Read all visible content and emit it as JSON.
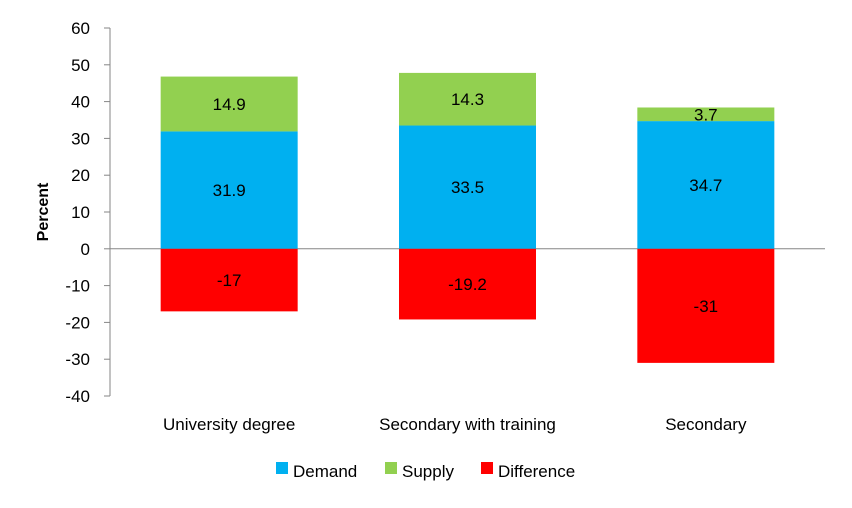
{
  "chart_data": {
    "type": "bar",
    "stacked": true,
    "categories": [
      "University degree",
      "Secondary with training",
      "Secondary"
    ],
    "series": [
      {
        "name": "Demand",
        "color": "#00B0F0",
        "values": [
          31.9,
          33.5,
          34.7
        ],
        "labels": [
          "31.9",
          "33.5",
          "34.7"
        ]
      },
      {
        "name": "Supply",
        "color": "#92D050",
        "values": [
          14.9,
          14.3,
          3.7
        ],
        "labels": [
          "14.9",
          "14.3",
          "3.7"
        ]
      },
      {
        "name": "Difference",
        "color": "#FF0000",
        "values": [
          -17,
          -19.2,
          -31
        ],
        "labels": [
          "-17",
          "-19.2",
          "-31"
        ]
      }
    ],
    "ylabel": "Percent",
    "xlabel": "",
    "ylim": [
      -40,
      60
    ],
    "yticks": [
      60,
      50,
      40,
      30,
      20,
      10,
      0,
      -10,
      -20,
      -30,
      -40
    ],
    "ytick_labels": [
      "60",
      "50",
      "40",
      "30",
      "20",
      "10",
      "0",
      "-10",
      "-20",
      "-30",
      "-40"
    ],
    "legend_position": "bottom",
    "grid": false
  }
}
